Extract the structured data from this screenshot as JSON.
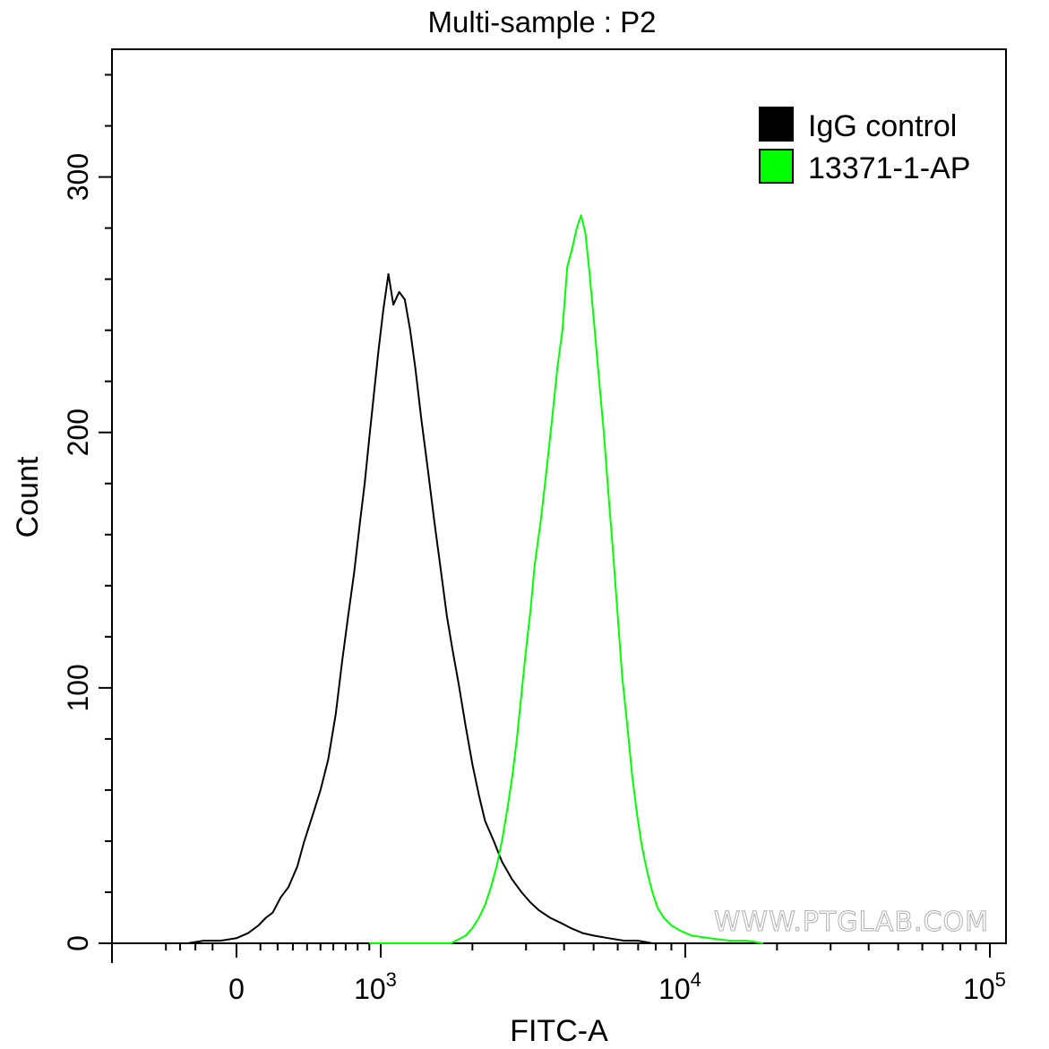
{
  "chart_data": {
    "type": "line",
    "title": "Multi-sample : P2",
    "xlabel": "FITC-A",
    "ylabel": "Count",
    "x_scale": "biexponential",
    "xlim": [
      -500,
      100000
    ],
    "ylim": [
      0,
      350
    ],
    "x_ticks": [
      {
        "value": 0,
        "base": "0",
        "exp": ""
      },
      {
        "value": 1000,
        "base": "10",
        "exp": "3"
      },
      {
        "value": 10000,
        "base": "10",
        "exp": "4"
      },
      {
        "value": 100000,
        "base": "10",
        "exp": "5"
      }
    ],
    "y_ticks": [
      {
        "value": 0,
        "label": "0"
      },
      {
        "value": 100,
        "label": "100"
      },
      {
        "value": 200,
        "label": "200"
      },
      {
        "value": 300,
        "label": "300"
      }
    ],
    "grid": false,
    "legend": {
      "position": "top-right",
      "entries": [
        {
          "label": "IgG control",
          "color": "#000000"
        },
        {
          "label": "13371-1-AP",
          "color": "#00ff00"
        }
      ]
    },
    "watermark": "WWW.PTGLAB.COM",
    "series": [
      {
        "name": "IgG control",
        "color": "#000000",
        "points": [
          [
            -250,
            0
          ],
          [
            -150,
            1
          ],
          [
            -60,
            1
          ],
          [
            0,
            2
          ],
          [
            40,
            4
          ],
          [
            90,
            7
          ],
          [
            130,
            10
          ],
          [
            170,
            12
          ],
          [
            220,
            18
          ],
          [
            270,
            22
          ],
          [
            330,
            30
          ],
          [
            380,
            40
          ],
          [
            440,
            50
          ],
          [
            500,
            60
          ],
          [
            560,
            72
          ],
          [
            620,
            90
          ],
          [
            670,
            110
          ],
          [
            720,
            128
          ],
          [
            770,
            145
          ],
          [
            820,
            165
          ],
          [
            860,
            180
          ],
          [
            900,
            198
          ],
          [
            940,
            215
          ],
          [
            980,
            232
          ],
          [
            1020,
            248
          ],
          [
            1060,
            262
          ],
          [
            1100,
            250
          ],
          [
            1150,
            255
          ],
          [
            1200,
            252
          ],
          [
            1250,
            240
          ],
          [
            1300,
            225
          ],
          [
            1360,
            205
          ],
          [
            1430,
            185
          ],
          [
            1500,
            165
          ],
          [
            1580,
            145
          ],
          [
            1650,
            128
          ],
          [
            1720,
            115
          ],
          [
            1800,
            102
          ],
          [
            1900,
            85
          ],
          [
            2000,
            70
          ],
          [
            2100,
            58
          ],
          [
            2200,
            48
          ],
          [
            2350,
            40
          ],
          [
            2500,
            32
          ],
          [
            2700,
            25
          ],
          [
            2900,
            20
          ],
          [
            3100,
            16
          ],
          [
            3300,
            13
          ],
          [
            3600,
            10
          ],
          [
            3900,
            8
          ],
          [
            4200,
            6
          ],
          [
            4600,
            4
          ],
          [
            5000,
            3
          ],
          [
            5600,
            2
          ],
          [
            6300,
            1
          ],
          [
            7000,
            1
          ],
          [
            7800,
            0
          ]
        ]
      },
      {
        "name": "13371-1-AP",
        "color": "#00ff00",
        "points": [
          [
            900,
            0
          ],
          [
            1300,
            0
          ],
          [
            1700,
            0
          ],
          [
            1900,
            3
          ],
          [
            2000,
            6
          ],
          [
            2100,
            10
          ],
          [
            2200,
            15
          ],
          [
            2300,
            22
          ],
          [
            2400,
            30
          ],
          [
            2500,
            40
          ],
          [
            2600,
            52
          ],
          [
            2700,
            65
          ],
          [
            2800,
            80
          ],
          [
            2900,
            98
          ],
          [
            3000,
            115
          ],
          [
            3100,
            130
          ],
          [
            3200,
            148
          ],
          [
            3350,
            165
          ],
          [
            3500,
            185
          ],
          [
            3650,
            205
          ],
          [
            3800,
            225
          ],
          [
            3950,
            240
          ],
          [
            4100,
            265
          ],
          [
            4250,
            272
          ],
          [
            4400,
            280
          ],
          [
            4550,
            285
          ],
          [
            4700,
            278
          ],
          [
            4850,
            262
          ],
          [
            5000,
            245
          ],
          [
            5200,
            222
          ],
          [
            5400,
            200
          ],
          [
            5600,
            175
          ],
          [
            5800,
            152
          ],
          [
            6000,
            128
          ],
          [
            6200,
            105
          ],
          [
            6450,
            85
          ],
          [
            6700,
            65
          ],
          [
            6950,
            50
          ],
          [
            7200,
            38
          ],
          [
            7500,
            28
          ],
          [
            7800,
            20
          ],
          [
            8100,
            14
          ],
          [
            8500,
            10
          ],
          [
            9000,
            7
          ],
          [
            9600,
            5
          ],
          [
            10500,
            3
          ],
          [
            12000,
            2
          ],
          [
            14000,
            1
          ],
          [
            16000,
            1
          ],
          [
            18000,
            0
          ]
        ]
      }
    ]
  }
}
